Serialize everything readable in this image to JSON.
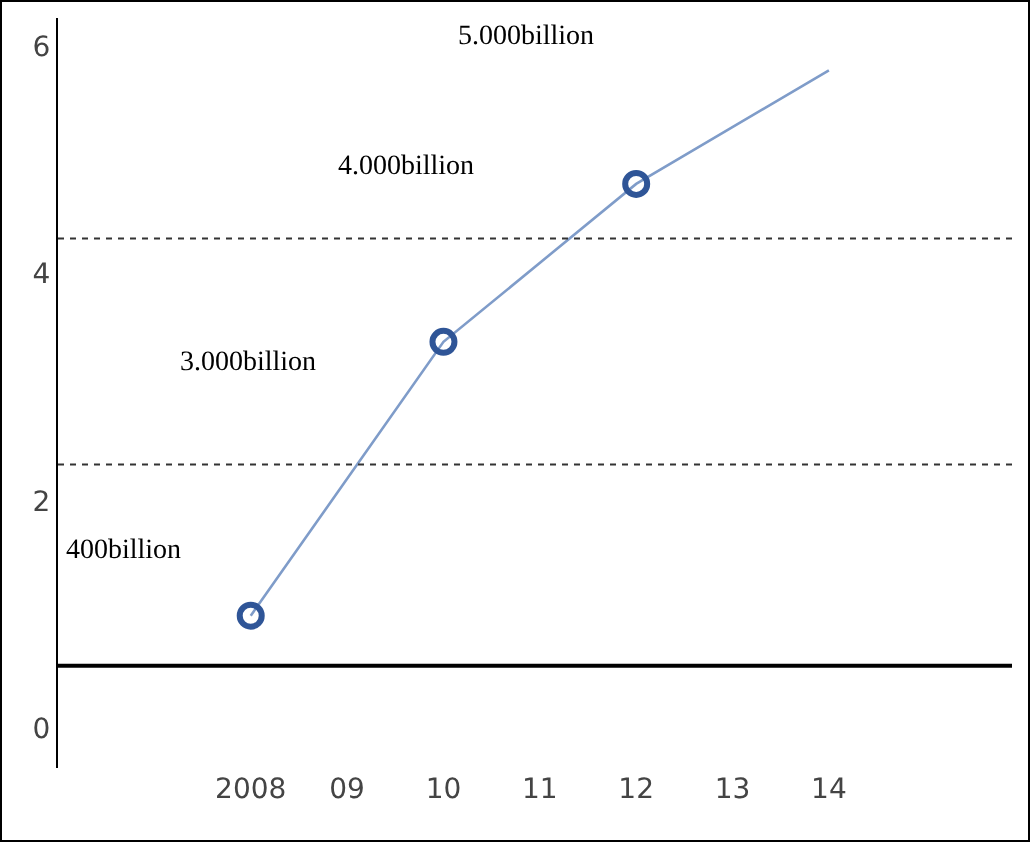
{
  "chart_data": {
    "type": "line",
    "x": [
      2008,
      2010,
      2012,
      2014
    ],
    "series": [
      {
        "color": "#7f9cc9",
        "marker": "none",
        "values": [
          0.99,
          3.4,
          4.79,
          5.79
        ]
      },
      {
        "type": "scatter",
        "color": "#2f5597",
        "marker": "circle",
        "x": [
          2008,
          2010,
          2012
        ],
        "values": [
          0.99,
          3.4,
          4.79
        ]
      }
    ],
    "xlim": [
      2006,
      2015.9
    ],
    "ylim": [
      -0.35,
      6.25
    ],
    "xticks": [
      2008,
      {
        "value": 2009,
        "label": "09"
      },
      {
        "value": 2010,
        "label": "10"
      },
      {
        "value": 2011,
        "label": "11"
      },
      {
        "value": 2012,
        "label": "12"
      },
      {
        "value": 2013,
        "label": "13"
      },
      {
        "value": 2014,
        "label": "14"
      }
    ],
    "yticks": [
      0,
      2,
      4,
      6
    ],
    "ref_lines": [
      {
        "axis": "y",
        "value": 0.55,
        "color": "#000000",
        "line_style": "solid"
      },
      {
        "axis": "y",
        "value": 2.32,
        "color": "#333333",
        "line_style": "dotted"
      },
      {
        "axis": "y",
        "value": 4.31,
        "color": "#333333",
        "line_style": "dotted"
      }
    ],
    "annotations": [
      "400billion",
      "3.000billion",
      "4.000billion",
      "5.000billion"
    ],
    "tick_labels": true
  }
}
